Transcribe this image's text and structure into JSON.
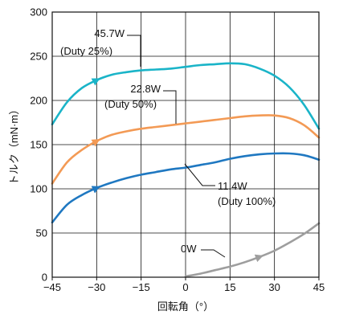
{
  "chart_data": {
    "type": "line",
    "xlabel": "回転角（°）",
    "ylabel": "トルク（mN·m）",
    "xlim": [
      -45,
      45
    ],
    "ylim": [
      0,
      300
    ],
    "xticks": [
      -45,
      -30,
      -15,
      0,
      15,
      30,
      45
    ],
    "xtick_labels": [
      "−45",
      "−30",
      "−15",
      "0",
      "15",
      "30",
      "45"
    ],
    "yticks": [
      0,
      50,
      100,
      150,
      200,
      250,
      300
    ],
    "ytick_labels": [
      "0",
      "50",
      "100",
      "150",
      "200",
      "250",
      "300"
    ],
    "grid": true,
    "series": [
      {
        "name": "45.7W",
        "duty": "(Duty 25%)",
        "color": "#1ab4c8",
        "x": [
          -45,
          -40,
          -35,
          -30,
          -25,
          -20,
          -15,
          -10,
          -5,
          0,
          5,
          10,
          15,
          20,
          25,
          30,
          35,
          40,
          45
        ],
        "y": [
          173,
          198,
          214,
          223,
          229,
          232,
          234,
          235,
          236,
          238,
          240,
          241,
          242,
          241,
          236,
          228,
          215,
          195,
          168
        ]
      },
      {
        "name": "22.8W",
        "duty": "(Duty 50%)",
        "color": "#f39a55",
        "x": [
          -45,
          -40,
          -35,
          -30,
          -25,
          -20,
          -15,
          -10,
          -5,
          0,
          5,
          10,
          15,
          20,
          25,
          30,
          35,
          40,
          45
        ],
        "y": [
          106,
          130,
          144,
          154,
          161,
          165,
          168,
          170,
          172,
          174,
          176,
          178,
          180,
          182,
          183,
          183,
          180,
          172,
          158
        ]
      },
      {
        "name": "11.4W",
        "duty": "(Duty 100%)",
        "color": "#1f78c1",
        "x": [
          -45,
          -40,
          -35,
          -30,
          -25,
          -20,
          -15,
          -10,
          -5,
          0,
          5,
          10,
          15,
          20,
          25,
          30,
          35,
          40,
          45
        ],
        "y": [
          62,
          82,
          93,
          101,
          107,
          112,
          116,
          119,
          122,
          124,
          127,
          130,
          134,
          137,
          139,
          140,
          140,
          138,
          133
        ]
      },
      {
        "name": "0W",
        "duty": "",
        "color": "#9e9e9e",
        "x": [
          0,
          5,
          10,
          15,
          20,
          25,
          30,
          35,
          40,
          45
        ],
        "y": [
          1,
          4,
          8,
          12,
          17,
          23,
          30,
          39,
          49,
          61
        ]
      }
    ]
  }
}
